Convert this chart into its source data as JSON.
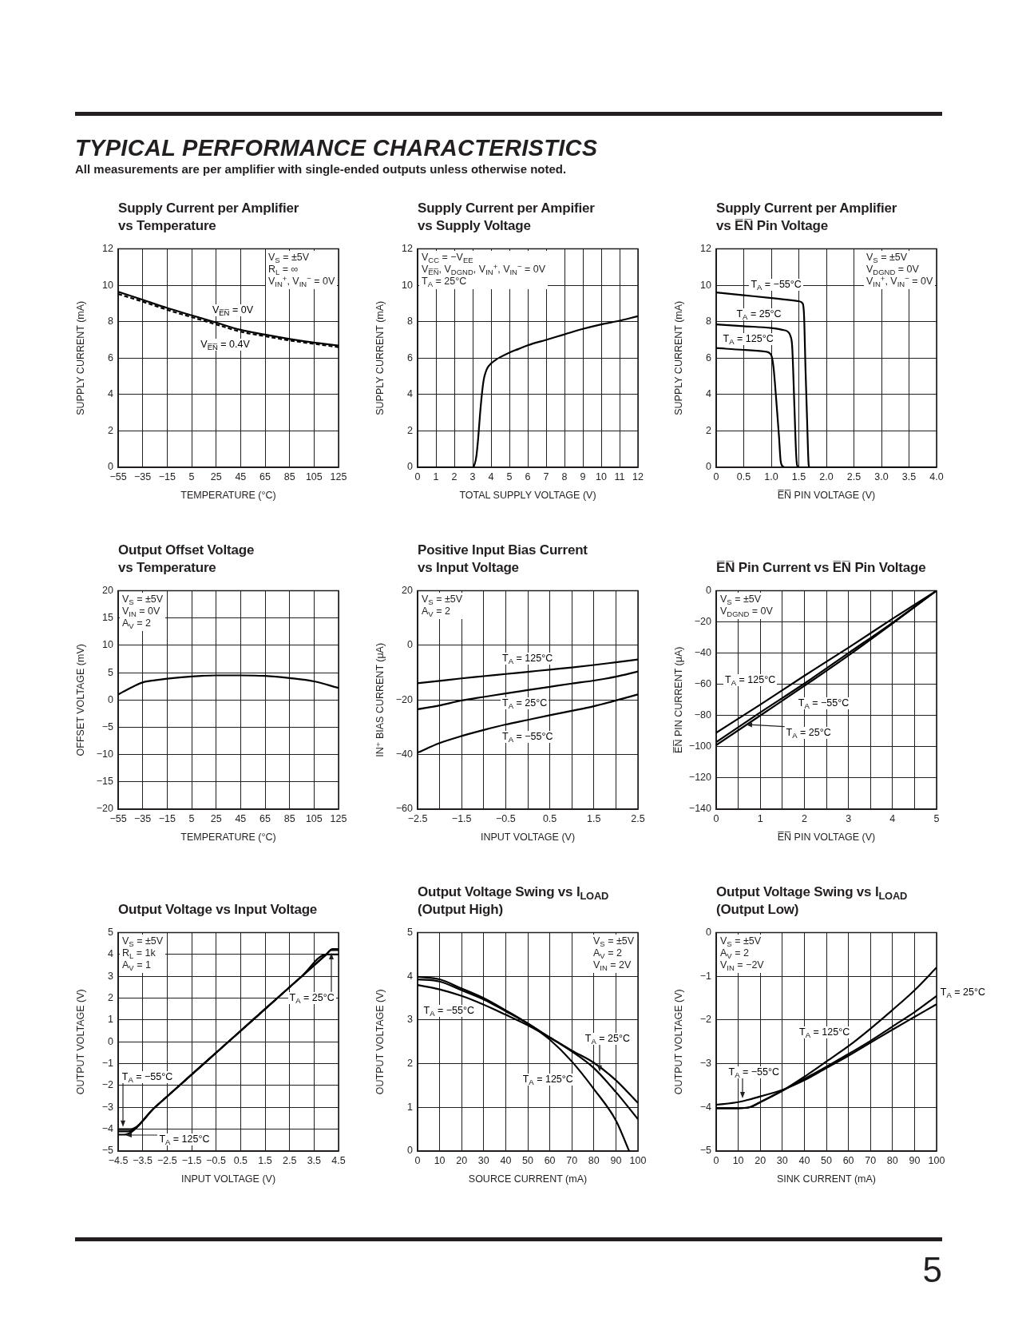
{
  "chart_data": [
    {
      "type": "other",
      "title": "TYPICAL PERFORMANCE CHARACTERISTICS",
      "subtitle": "All measurements are per amplifier with single-ended outputs unless otherwise noted."
    },
    {
      "type": "line",
      "title": "Supply Current per Amplifier\nvs Temperature",
      "xlabel": "TEMPERATURE (°C)",
      "ylabel": "SUPPLY CURRENT (mA)",
      "x": [
        -55,
        -35,
        -15,
        5,
        25,
        45,
        65,
        85,
        105,
        125
      ],
      "series": [
        {
          "name": "V$_{E̅N̅}$ = 0V",
          "color": "#000000",
          "values": [
            9.64,
            9.2,
            8.75,
            8.35,
            7.95,
            7.55,
            7.29,
            7.05,
            6.85,
            6.69
          ]
        },
        {
          "name": "V$_{E̅N̅}$ = 0.4V",
          "color": "#000000",
          "line_style": "dashed",
          "values": [
            9.52,
            9.1,
            8.65,
            8.25,
            7.85,
            7.45,
            7.2,
            6.97,
            6.78,
            6.6
          ]
        }
      ],
      "xlim": [
        -55,
        125
      ],
      "xticks": [
        -55,
        -35,
        -15,
        5,
        25,
        45,
        65,
        85,
        105,
        125
      ],
      "ylim": [
        0,
        12
      ],
      "yticks": [
        0,
        2,
        4,
        6,
        8,
        10,
        12
      ],
      "grid": true,
      "annotations": [
        "V$_{S}$ = ±5V",
        "R$_{L}$ = ∞",
        "V$_{IN}$$^{+}$, V$_{IN}$$^{−}$ = 0V"
      ]
    },
    {
      "type": "line",
      "title": "Supply Current per Ampifier\nvs Supply Voltage",
      "xlabel": "TOTAL SUPPLY VOLTAGE (V)",
      "ylabel": "SUPPLY CURRENT (mA)",
      "x": [
        0,
        1,
        2,
        3,
        3.1,
        3.2,
        3.3,
        3.4,
        3.5,
        3.6,
        3.7,
        3.8,
        4,
        4.25,
        4.5,
        5,
        5.5,
        6,
        7,
        8,
        9,
        10,
        11,
        12
      ],
      "values": [
        0,
        0,
        0,
        0,
        0.15,
        0.6,
        1.6,
        2.9,
        4.0,
        4.8,
        5.2,
        5.45,
        5.7,
        5.9,
        6.05,
        6.3,
        6.5,
        6.7,
        7.0,
        7.3,
        7.6,
        7.85,
        8.05,
        8.3
      ],
      "color": "#000000",
      "xlim": [
        0,
        12
      ],
      "xticks": [
        0,
        1,
        2,
        3,
        4,
        5,
        6,
        7,
        8,
        9,
        10,
        11,
        12
      ],
      "ylim": [
        0,
        12
      ],
      "yticks": [
        0,
        2,
        4,
        6,
        8,
        10,
        12
      ],
      "grid": true,
      "annotations": [
        "V$_{CC}$ = −V$_{EE}$",
        "V$_{E̅N̅}$, V$_{DGND}$, V$_{IN}$$^{+}$, V$_{IN}$$^{−}$ = 0V",
        "T$_{A}$ = 25°C"
      ]
    },
    {
      "type": "line",
      "title": "Supply Current per Amplifier\nvs E̅N̅ Pin Voltage",
      "xlabel": "E̅N̅ PIN VOLTAGE (V)",
      "ylabel": "SUPPLY CURRENT (mA)",
      "series": [
        {
          "name": "T$_{A}$ = −55°C",
          "color": "#000000",
          "x": [
            0,
            0.5,
            1,
            1.5,
            1.57,
            1.59,
            1.6,
            1.62,
            1.65,
            1.68,
            1.7,
            2,
            3,
            4
          ],
          "values": [
            9.6,
            9.45,
            9.3,
            9.12,
            9.0,
            8.6,
            7.9,
            5.5,
            2.6,
            0.1,
            0,
            0,
            0,
            0
          ]
        },
        {
          "name": "T$_{A}$ = 25°C",
          "color": "#000000",
          "x": [
            0,
            0.5,
            1,
            1.2,
            1.3,
            1.35,
            1.38,
            1.42,
            1.45,
            1.47,
            1.5,
            2,
            3,
            4
          ],
          "values": [
            7.85,
            7.75,
            7.65,
            7.55,
            7.45,
            7.2,
            6.6,
            3.3,
            0.8,
            0.1,
            0,
            0,
            0,
            0
          ]
        },
        {
          "name": "T$_{A}$ = 125°C",
          "color": "#000000",
          "x": [
            0,
            0.5,
            0.9,
            1.0,
            1.04,
            1.09,
            1.14,
            1.17,
            1.21,
            1.25,
            2,
            3,
            4
          ],
          "values": [
            6.55,
            6.45,
            6.35,
            6.15,
            5.5,
            3.7,
            1.7,
            0.35,
            0.05,
            0,
            0,
            0,
            0
          ]
        }
      ],
      "xlim": [
        0,
        4
      ],
      "xticks": [
        0,
        0.5,
        {
          "value": 1,
          "label": "1.0"
        },
        1.5,
        {
          "value": 2,
          "label": "2.0"
        },
        2.5,
        {
          "value": 3,
          "label": "3.0"
        },
        3.5,
        {
          "value": 4,
          "label": "4.0"
        }
      ],
      "ylim": [
        0,
        12
      ],
      "yticks": [
        0,
        2,
        4,
        6,
        8,
        10,
        12
      ],
      "grid": true,
      "annotations": [
        "V$_{S}$ = ±5V",
        "V$_{DGND}$ = 0V",
        "V$_{IN}$$^{+}$, V$_{IN}$$^{−}$ = 0V"
      ]
    },
    {
      "type": "line",
      "title": "Output Offset Voltage\nvs Temperature",
      "xlabel": "TEMPERATURE (°C)",
      "ylabel": "OFFSET VOLTAGE (mV)",
      "x": [
        -55,
        -45,
        -35,
        -25,
        -15,
        5,
        25,
        45,
        65,
        85,
        105,
        125
      ],
      "values": [
        1.0,
        2.2,
        3.2,
        3.6,
        3.9,
        4.3,
        4.5,
        4.5,
        4.4,
        4.0,
        3.4,
        2.2
      ],
      "color": "#000000",
      "xlim": [
        -55,
        125
      ],
      "xticks": [
        -55,
        -35,
        -15,
        5,
        25,
        45,
        65,
        85,
        105,
        125
      ],
      "ylim": [
        -20,
        20
      ],
      "yticks": [
        -20,
        -15,
        -10,
        -5,
        0,
        5,
        10,
        15,
        20
      ],
      "grid": true,
      "annotations": [
        "V$_{S}$ = ±5V",
        "V$_{IN}$ = 0V",
        "A$_{V}$ = 2"
      ]
    },
    {
      "type": "line",
      "title": "Positive Input Bias Current\nvs Input Voltage",
      "xlabel": "INPUT VOLTAGE (V)",
      "ylabel": "IN⁺ BIAS CURRENT (μA)",
      "x": [
        -2.5,
        -2,
        -1.5,
        -1,
        -0.5,
        0,
        0.5,
        1,
        1.5,
        2,
        2.5
      ],
      "series": [
        {
          "name": "T$_{A}$ = −55°C",
          "color": "#000000",
          "values": [
            -39.3,
            -35.8,
            -33.2,
            -31.0,
            -29.0,
            -27.3,
            -25.6,
            -24.0,
            -22.3,
            -20.2,
            -18.0
          ]
        },
        {
          "name": "T$_{A}$ = 25°C",
          "color": "#000000",
          "values": [
            -23.4,
            -22.0,
            -20.2,
            -18.9,
            -17.6,
            -16.4,
            -15.2,
            -14.0,
            -12.9,
            -11.5,
            -9.6
          ]
        },
        {
          "name": "T$_{A}$ = 125°C",
          "color": "#000000",
          "values": [
            -13.9,
            -13.0,
            -12.1,
            -11.3,
            -10.5,
            -9.7,
            -8.9,
            -8.1,
            -7.2,
            -6.2,
            -5.2
          ]
        }
      ],
      "xlim": [
        -2.5,
        2.5
      ],
      "xticks": [
        -2.5,
        {
          "value": -2,
          "label": null
        },
        -1.5,
        {
          "value": -1,
          "label": null
        },
        -0.5,
        {
          "value": 0,
          "label": null
        },
        0.5,
        {
          "value": 1,
          "label": null
        },
        1.5,
        {
          "value": 2,
          "label": null
        },
        2.5
      ],
      "ylim": [
        -60,
        20
      ],
      "yticks": [
        -60,
        -40,
        -20,
        0,
        20
      ],
      "grid": true,
      "annotations": [
        "V$_{S}$ = ±5V",
        "A$_{V}$ = 2"
      ]
    },
    {
      "type": "line",
      "title": "E̅N̅ Pin Current vs E̅N̅ Pin Voltage",
      "xlabel": "E̅N̅ PIN VOLTAGE (V)",
      "ylabel": "E̅N̅ PIN CURRENT (μA)",
      "x": [
        0,
        1,
        2,
        3,
        4,
        5
      ],
      "series": [
        {
          "name": "T$_{A}$ = −55°C",
          "color": "#000000",
          "values": [
            -97,
            -78,
            -59.5,
            -40,
            -20.5,
            0
          ]
        },
        {
          "name": "T$_{A}$ = 25°C",
          "color": "#000000",
          "values": [
            -99,
            -80,
            -61,
            -41.5,
            -21,
            0
          ]
        },
        {
          "name": "T$_{A}$ = 125°C",
          "color": "#000000",
          "values": [
            -91,
            -73,
            -54.5,
            -36.5,
            -18,
            0
          ]
        }
      ],
      "xlim": [
        0,
        5
      ],
      "xticks": [
        0,
        {
          "value": 0.5,
          "label": null
        },
        1,
        {
          "value": 1.5,
          "label": null
        },
        2,
        {
          "value": 2.5,
          "label": null
        },
        3,
        {
          "value": 3.5,
          "label": null
        },
        4,
        {
          "value": 4.5,
          "label": null
        },
        5
      ],
      "ylim": [
        -140,
        0
      ],
      "yticks": [
        -140,
        -120,
        -100,
        -80,
        -60,
        -40,
        -20,
        0
      ],
      "grid": true,
      "annotations": [
        "V$_{S}$ = ±5V",
        "V$_{DGND}$ = 0V"
      ]
    },
    {
      "type": "line",
      "title": "Output Voltage vs Input Voltage",
      "xlabel": "INPUT VOLTAGE (V)",
      "ylabel": "OUTPUT VOLTAGE (V)",
      "series": [
        {
          "name": "T$_{A}$ = −55°C",
          "color": "#000000",
          "x": [
            -4.5,
            -4.0,
            -3,
            -2,
            -1,
            0,
            1,
            2,
            3,
            4,
            4.25,
            4.5
          ],
          "values": [
            -4.0,
            -4.0,
            -3,
            -2,
            -1,
            0,
            1,
            2,
            3,
            4,
            4.25,
            4.25
          ]
        },
        {
          "name": "T$_{A}$ = 25°C",
          "color": "#000000",
          "x": [
            -4.5,
            -4.1,
            -3,
            -2,
            -1,
            0,
            1,
            2,
            3,
            4.0,
            4.5
          ],
          "values": [
            -4.1,
            -4.1,
            -3,
            -2,
            -1,
            0,
            1,
            2,
            3,
            4.0,
            4.0
          ]
        },
        {
          "name": "T$_{A}$ = 125°C",
          "color": "#000000",
          "x": [
            -4.5,
            -4.25,
            -3,
            -2,
            -1,
            0,
            1,
            2,
            3,
            4,
            4.2,
            4.5
          ],
          "values": [
            -4.25,
            -4.25,
            -3,
            -2,
            -1,
            0,
            1,
            2,
            3,
            4,
            4.2,
            4.2
          ]
        }
      ],
      "xlim": [
        -4.5,
        4.5
      ],
      "xticks": [
        -4.5,
        -3.5,
        -2.5,
        -1.5,
        -0.5,
        0.5,
        1.5,
        2.5,
        3.5,
        4.5
      ],
      "ylim": [
        -5,
        5
      ],
      "yticks": [
        -5,
        -4,
        -3,
        -2,
        -1,
        0,
        1,
        2,
        3,
        4,
        5
      ],
      "grid": true,
      "annotations": [
        "V$_{S}$ = ±5V",
        "R$_{L}$ = 1k",
        "A$_{V}$ = 1"
      ]
    },
    {
      "type": "line",
      "title": "Output Voltage Swing vs I$_{LOAD}$\n(Output High)",
      "xlabel": "SOURCE CURRENT (mA)",
      "ylabel": "OUTPUT VOLTAGE (V)",
      "series": [
        {
          "name": "T$_{A}$ = −55°C",
          "color": "#000000",
          "x": [
            0,
            10,
            20,
            30,
            40,
            50,
            60,
            70,
            80,
            90,
            100
          ],
          "values": [
            3.8,
            3.7,
            3.55,
            3.35,
            3.12,
            2.88,
            2.6,
            2.3,
            2.02,
            1.62,
            1.1
          ]
        },
        {
          "name": "T$_{A}$ = 25°C",
          "color": "#000000",
          "x": [
            0,
            10,
            20,
            30,
            40,
            50,
            60,
            70,
            80,
            90,
            100
          ],
          "values": [
            3.93,
            3.88,
            3.68,
            3.47,
            3.2,
            2.92,
            2.6,
            2.28,
            1.9,
            1.35,
            0.73
          ]
        },
        {
          "name": "T$_{A}$ = 125°C",
          "color": "#000000",
          "x": [
            0,
            10,
            20,
            30,
            40,
            50,
            60,
            70,
            80,
            90,
            96
          ],
          "values": [
            3.99,
            3.93,
            3.72,
            3.5,
            3.22,
            2.92,
            2.55,
            2.05,
            1.42,
            0.7,
            0
          ]
        }
      ],
      "xlim": [
        0,
        100
      ],
      "xticks": [
        0,
        10,
        20,
        30,
        40,
        50,
        60,
        70,
        80,
        90,
        100
      ],
      "ylim": [
        0,
        5
      ],
      "yticks": [
        0,
        1,
        2,
        3,
        4,
        5
      ],
      "grid": true,
      "annotations": [
        "V$_{S}$ = ±5V",
        "A$_{V}$ = 2",
        "V$_{IN}$ = 2V"
      ]
    },
    {
      "type": "line",
      "title": "Output Voltage Swing vs I$_{LOAD}$\n(Output Low)",
      "xlabel": "SINK CURRENT (mA)",
      "ylabel": "OUTPUT VOLTAGE (V)",
      "x": [
        0,
        10,
        15,
        20,
        30,
        40,
        50,
        60,
        70,
        80,
        90,
        100
      ],
      "series": [
        {
          "name": "T$_{A}$ = −55°C",
          "color": "#000000",
          "values": [
            -3.94,
            -3.88,
            -3.82,
            -3.75,
            -3.6,
            -3.38,
            -3.1,
            -2.82,
            -2.52,
            -2.22,
            -1.93,
            -1.64
          ]
        },
        {
          "name": "T$_{A}$ = 25°C",
          "color": "#000000",
          "values": [
            -4.02,
            -4.02,
            -4.0,
            -3.88,
            -3.62,
            -3.35,
            -3.07,
            -2.78,
            -2.48,
            -2.15,
            -1.82,
            -1.45
          ]
        },
        {
          "name": "T$_{A}$ = 125°C",
          "color": "#000000",
          "values": [
            -4.02,
            -4.02,
            -4.0,
            -3.88,
            -3.62,
            -3.3,
            -2.95,
            -2.6,
            -2.2,
            -1.77,
            -1.32,
            -0.8
          ]
        }
      ],
      "xlim": [
        0,
        100
      ],
      "xticks": [
        0,
        10,
        20,
        30,
        40,
        50,
        60,
        70,
        80,
        90,
        100
      ],
      "ylim": [
        -5,
        0
      ],
      "yticks": [
        -5,
        -4,
        -3,
        -2,
        -1,
        0
      ],
      "grid": true,
      "annotations": [
        "V$_{S}$ = ±5V",
        "A$_{V}$ = 2",
        "V$_{IN}$ = −2V"
      ]
    },
    {
      "type": "other",
      "annotations": [
        "5"
      ]
    }
  ]
}
